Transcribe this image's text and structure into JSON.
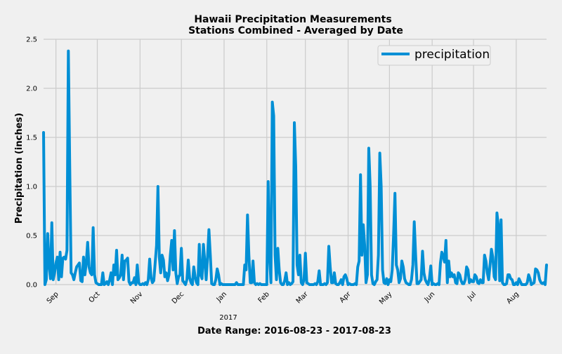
{
  "chart_data": {
    "type": "line",
    "title": "Hawaii Precipitation Measurements",
    "subtitle": "Stations Combined - Averaged by Date",
    "xlabel": "Date Range:  2016-08-23 - 2017-08-23",
    "ylabel": "Precipitation (inches)",
    "xlim": [
      "2016-08-23",
      "2017-08-23"
    ],
    "ylim": [
      0,
      2.5
    ],
    "yticks": [
      "0.0",
      "0.5",
      "1.0",
      "1.5",
      "2.0",
      "2.5"
    ],
    "xticks": [
      {
        "date": "2016-09-01",
        "label": "Sep"
      },
      {
        "date": "2016-10-01",
        "label": "Oct"
      },
      {
        "date": "2016-11-01",
        "label": "Nov"
      },
      {
        "date": "2016-12-01",
        "label": "Dec"
      },
      {
        "date": "2017-01-01",
        "label": "Jan",
        "label2": "2017"
      },
      {
        "date": "2017-02-01",
        "label": "Feb"
      },
      {
        "date": "2017-03-01",
        "label": "Mar"
      },
      {
        "date": "2017-04-01",
        "label": "Apr"
      },
      {
        "date": "2017-05-01",
        "label": "May"
      },
      {
        "date": "2017-06-01",
        "label": "Jun"
      },
      {
        "date": "2017-07-01",
        "label": "Jul"
      },
      {
        "date": "2017-08-01",
        "label": "Aug"
      }
    ],
    "grid": true,
    "legend_position": "top-right",
    "series": [
      {
        "name": "precipitation",
        "color": "#008fd5",
        "x": [
          "2016-08-23",
          "2016-08-24",
          "2016-08-25",
          "2016-08-26",
          "2016-08-27",
          "2016-08-28",
          "2016-08-29",
          "2016-08-30",
          "2016-08-31",
          "2016-09-01",
          "2016-09-02",
          "2016-09-03",
          "2016-09-04",
          "2016-09-05",
          "2016-09-06",
          "2016-09-07",
          "2016-09-08",
          "2016-09-09",
          "2016-09-10",
          "2016-09-11",
          "2016-09-12",
          "2016-09-13",
          "2016-09-14",
          "2016-09-15",
          "2016-09-16",
          "2016-09-17",
          "2016-09-18",
          "2016-09-19",
          "2016-09-20",
          "2016-09-21",
          "2016-09-22",
          "2016-09-23",
          "2016-09-24",
          "2016-09-25",
          "2016-09-26",
          "2016-09-27",
          "2016-09-28",
          "2016-09-29",
          "2016-09-30",
          "2016-10-01",
          "2016-10-02",
          "2016-10-03",
          "2016-10-04",
          "2016-10-05",
          "2016-10-06",
          "2016-10-07",
          "2016-10-08",
          "2016-10-09",
          "2016-10-10",
          "2016-10-11",
          "2016-10-12",
          "2016-10-13",
          "2016-10-14",
          "2016-10-15",
          "2016-10-16",
          "2016-10-17",
          "2016-10-18",
          "2016-10-19",
          "2016-10-20",
          "2016-10-21",
          "2016-10-22",
          "2016-10-23",
          "2016-10-24",
          "2016-10-25",
          "2016-10-26",
          "2016-10-27",
          "2016-10-28",
          "2016-10-29",
          "2016-10-30",
          "2016-10-31",
          "2016-11-01",
          "2016-11-02",
          "2016-11-03",
          "2016-11-04",
          "2016-11-05",
          "2016-11-06",
          "2016-11-07",
          "2016-11-08",
          "2016-11-09",
          "2016-11-10",
          "2016-11-11",
          "2016-11-12",
          "2016-11-13",
          "2016-11-14",
          "2016-11-15",
          "2016-11-16",
          "2016-11-17",
          "2016-11-18",
          "2016-11-19",
          "2016-11-20",
          "2016-11-21",
          "2016-11-22",
          "2016-11-23",
          "2016-11-24",
          "2016-11-25",
          "2016-11-26",
          "2016-11-27",
          "2016-11-28",
          "2016-11-29",
          "2016-11-30",
          "2016-12-01",
          "2016-12-02",
          "2016-12-03",
          "2016-12-04",
          "2016-12-05",
          "2016-12-06",
          "2016-12-07",
          "2016-12-08",
          "2016-12-09",
          "2016-12-10",
          "2016-12-11",
          "2016-12-12",
          "2016-12-13",
          "2016-12-14",
          "2016-12-15",
          "2016-12-16",
          "2016-12-17",
          "2016-12-18",
          "2016-12-19",
          "2016-12-20",
          "2016-12-21",
          "2016-12-22",
          "2016-12-23",
          "2016-12-24",
          "2016-12-25",
          "2016-12-26",
          "2016-12-27",
          "2016-12-28",
          "2016-12-29",
          "2016-12-30",
          "2016-12-31",
          "2017-01-01",
          "2017-01-02",
          "2017-01-03",
          "2017-01-04",
          "2017-01-05",
          "2017-01-06",
          "2017-01-07",
          "2017-01-08",
          "2017-01-09",
          "2017-01-10",
          "2017-01-11",
          "2017-01-12",
          "2017-01-13",
          "2017-01-14",
          "2017-01-15",
          "2017-01-16",
          "2017-01-17",
          "2017-01-18",
          "2017-01-19",
          "2017-01-20",
          "2017-01-21",
          "2017-01-22",
          "2017-01-23",
          "2017-01-24",
          "2017-01-25",
          "2017-01-26",
          "2017-01-27",
          "2017-01-28",
          "2017-01-29",
          "2017-01-30",
          "2017-01-31",
          "2017-02-01",
          "2017-02-02",
          "2017-02-03",
          "2017-02-04",
          "2017-02-05",
          "2017-02-06",
          "2017-02-07",
          "2017-02-08",
          "2017-02-09",
          "2017-02-10",
          "2017-02-11",
          "2017-02-12",
          "2017-02-13",
          "2017-02-14",
          "2017-02-15",
          "2017-02-16",
          "2017-02-17",
          "2017-02-18",
          "2017-02-19",
          "2017-02-20",
          "2017-02-21",
          "2017-02-22",
          "2017-02-23",
          "2017-02-24",
          "2017-02-25",
          "2017-02-26",
          "2017-02-27",
          "2017-02-28",
          "2017-03-01",
          "2017-03-02",
          "2017-03-03",
          "2017-03-04",
          "2017-03-05",
          "2017-03-06",
          "2017-03-07",
          "2017-03-08",
          "2017-03-09",
          "2017-03-10",
          "2017-03-11",
          "2017-03-12",
          "2017-03-13",
          "2017-03-14",
          "2017-03-15",
          "2017-03-16",
          "2017-03-17",
          "2017-03-18",
          "2017-03-19",
          "2017-03-20",
          "2017-03-21",
          "2017-03-22",
          "2017-03-23",
          "2017-03-24",
          "2017-03-25",
          "2017-03-26",
          "2017-03-27",
          "2017-03-28",
          "2017-03-29",
          "2017-03-30",
          "2017-03-31",
          "2017-04-01",
          "2017-04-02",
          "2017-04-03",
          "2017-04-04",
          "2017-04-05",
          "2017-04-06",
          "2017-04-07",
          "2017-04-08",
          "2017-04-09",
          "2017-04-10",
          "2017-04-11",
          "2017-04-12",
          "2017-04-13",
          "2017-04-14",
          "2017-04-15",
          "2017-04-16",
          "2017-04-17",
          "2017-04-18",
          "2017-04-19",
          "2017-04-20",
          "2017-04-21",
          "2017-04-22",
          "2017-04-23",
          "2017-04-24",
          "2017-04-25",
          "2017-04-26",
          "2017-04-27",
          "2017-04-28",
          "2017-04-29",
          "2017-04-30",
          "2017-05-01",
          "2017-05-02",
          "2017-05-03",
          "2017-05-04",
          "2017-05-05",
          "2017-05-06",
          "2017-05-07",
          "2017-05-08",
          "2017-05-09",
          "2017-05-10",
          "2017-05-11",
          "2017-05-12",
          "2017-05-13",
          "2017-05-14",
          "2017-05-15",
          "2017-05-16",
          "2017-05-17",
          "2017-05-18",
          "2017-05-19",
          "2017-05-20",
          "2017-05-21",
          "2017-05-22",
          "2017-05-23",
          "2017-05-24",
          "2017-05-25",
          "2017-05-26",
          "2017-05-27",
          "2017-05-28",
          "2017-05-29",
          "2017-05-30",
          "2017-05-31",
          "2017-06-01",
          "2017-06-02",
          "2017-06-03",
          "2017-06-04",
          "2017-06-05",
          "2017-06-06",
          "2017-06-07",
          "2017-06-08",
          "2017-06-09",
          "2017-06-10",
          "2017-06-11",
          "2017-06-12",
          "2017-06-13",
          "2017-06-14",
          "2017-06-15",
          "2017-06-16",
          "2017-06-17",
          "2017-06-18",
          "2017-06-19",
          "2017-06-20",
          "2017-06-21",
          "2017-06-22",
          "2017-06-23",
          "2017-06-24",
          "2017-06-25",
          "2017-06-26",
          "2017-06-27",
          "2017-06-28",
          "2017-06-29",
          "2017-06-30",
          "2017-07-01",
          "2017-07-02",
          "2017-07-03",
          "2017-07-04",
          "2017-07-05",
          "2017-07-06",
          "2017-07-07",
          "2017-07-08",
          "2017-07-09",
          "2017-07-10",
          "2017-07-11",
          "2017-07-12",
          "2017-07-13",
          "2017-07-14",
          "2017-07-15",
          "2017-07-16",
          "2017-07-17",
          "2017-07-18",
          "2017-07-19",
          "2017-07-20",
          "2017-07-21",
          "2017-07-22",
          "2017-07-23",
          "2017-07-24",
          "2017-07-25",
          "2017-07-26",
          "2017-07-27",
          "2017-07-28",
          "2017-07-29",
          "2017-07-30",
          "2017-07-31",
          "2017-08-01",
          "2017-08-02",
          "2017-08-03",
          "2017-08-04",
          "2017-08-05",
          "2017-08-06",
          "2017-08-07",
          "2017-08-08",
          "2017-08-09",
          "2017-08-10",
          "2017-08-11",
          "2017-08-12",
          "2017-08-13",
          "2017-08-14",
          "2017-08-15",
          "2017-08-16",
          "2017-08-17",
          "2017-08-18",
          "2017-08-19",
          "2017-08-20",
          "2017-08-21",
          "2017-08-22",
          "2017-08-23"
        ],
        "values": [
          1.55,
          0.0,
          0.05,
          0.52,
          0.2,
          0.06,
          0.63,
          0.05,
          0.12,
          0.22,
          0.28,
          0.05,
          0.33,
          0.08,
          0.27,
          0.28,
          0.26,
          0.35,
          2.38,
          1.2,
          0.12,
          0.1,
          0.05,
          0.12,
          0.18,
          0.2,
          0.22,
          0.04,
          0.03,
          0.28,
          0.1,
          0.22,
          0.43,
          0.18,
          0.12,
          0.1,
          0.58,
          0.1,
          0.02,
          0.01,
          0.0,
          0.0,
          0.0,
          0.12,
          0.0,
          0.01,
          0.03,
          0.0,
          0.05,
          0.12,
          0.0,
          0.2,
          0.1,
          0.35,
          0.05,
          0.07,
          0.1,
          0.3,
          0.05,
          0.24,
          0.25,
          0.27,
          0.03,
          0.0,
          0.02,
          0.02,
          0.07,
          0.0,
          0.2,
          0.02,
          0.0,
          0.0,
          0.01,
          0.0,
          0.02,
          0.0,
          0.05,
          0.26,
          0.07,
          0.02,
          0.04,
          0.22,
          0.4,
          1.0,
          0.28,
          0.12,
          0.3,
          0.25,
          0.08,
          0.12,
          0.04,
          0.1,
          0.3,
          0.45,
          0.15,
          0.55,
          0.12,
          0.01,
          0.08,
          0.1,
          0.37,
          0.04,
          0.02,
          0.0,
          0.05,
          0.25,
          0.07,
          0.02,
          0.0,
          0.18,
          0.08,
          0.02,
          0.0,
          0.41,
          0.1,
          0.06,
          0.41,
          0.24,
          0.05,
          0.28,
          0.56,
          0.3,
          0.01,
          0.0,
          0.0,
          0.05,
          0.16,
          0.1,
          0.0,
          0.01,
          0.0,
          0.0,
          0.0,
          0.0,
          0.0,
          0.0,
          0.0,
          0.0,
          0.0,
          0.0,
          0.02,
          0.0,
          0.0,
          0.0,
          0.0,
          0.0,
          0.2,
          0.15,
          0.71,
          0.3,
          0.02,
          0.02,
          0.24,
          0.02,
          0.0,
          0.01,
          0.0,
          0.01,
          0.0,
          0.0,
          0.0,
          0.0,
          0.0,
          1.05,
          0.3,
          0.02,
          1.86,
          1.72,
          0.3,
          0.05,
          0.37,
          0.15,
          0.02,
          0.0,
          0.0,
          0.04,
          0.12,
          0.0,
          0.02,
          0.0,
          0.01,
          0.03,
          1.65,
          1.2,
          0.2,
          0.1,
          0.3,
          0.02,
          0.0,
          0.05,
          0.32,
          0.02,
          0.01,
          0.0,
          0.0,
          0.0,
          0.0,
          0.01,
          0.0,
          0.03,
          0.14,
          0.0,
          0.0,
          0.0,
          0.01,
          0.0,
          0.02,
          0.39,
          0.18,
          0.02,
          0.02,
          0.12,
          0.01,
          0.0,
          0.0,
          0.02,
          0.05,
          0.0,
          0.08,
          0.1,
          0.06,
          0.0,
          0.01,
          0.0,
          0.0,
          0.0,
          0.01,
          0.0,
          0.18,
          0.24,
          1.12,
          0.3,
          0.61,
          0.4,
          0.02,
          0.1,
          1.39,
          1.0,
          0.1,
          0.01,
          0.0,
          0.03,
          0.05,
          0.3,
          1.34,
          1.0,
          0.15,
          0.02,
          0.01,
          0.06,
          0.0,
          0.05,
          0.03,
          0.15,
          0.5,
          0.93,
          0.2,
          0.15,
          0.02,
          0.06,
          0.24,
          0.18,
          0.06,
          0.02,
          0.01,
          0.0,
          0.0,
          0.05,
          0.2,
          0.64,
          0.3,
          0.01,
          0.01,
          0.03,
          0.05,
          0.34,
          0.12,
          0.05,
          0.02,
          0.0,
          0.06,
          0.19,
          0.0,
          0.01,
          0.0,
          0.0,
          0.01,
          0.0,
          0.22,
          0.33,
          0.29,
          0.23,
          0.45,
          0.02,
          0.24,
          0.08,
          0.12,
          0.08,
          0.1,
          0.02,
          0.01,
          0.12,
          0.1,
          0.04,
          0.01,
          0.01,
          0.05,
          0.18,
          0.15,
          0.02,
          0.05,
          0.03,
          0.03,
          0.1,
          0.08,
          0.02,
          0.01,
          0.05,
          0.02,
          0.02,
          0.3,
          0.24,
          0.12,
          0.05,
          0.2,
          0.36,
          0.28,
          0.08,
          0.05,
          0.73,
          0.6,
          0.04,
          0.66,
          0.02,
          0.0,
          0.0,
          0.01,
          0.1,
          0.1,
          0.06,
          0.05,
          0.0,
          0.0,
          0.02,
          0.0,
          0.06,
          0.03,
          0.0,
          0.0,
          0.0,
          0.0,
          0.02,
          0.1,
          0.06,
          0.0,
          0.01,
          0.02,
          0.16,
          0.15,
          0.12,
          0.05,
          0.02,
          0.01,
          0.02,
          0.0,
          0.2
        ]
      }
    ]
  }
}
